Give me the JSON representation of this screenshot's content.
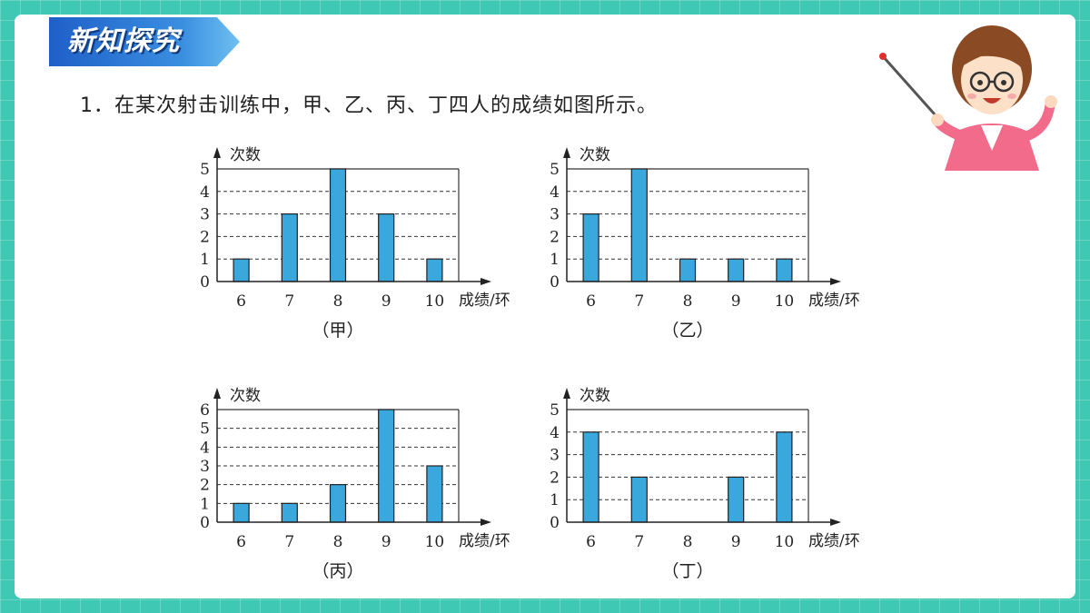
{
  "banner": {
    "title": "新知探究"
  },
  "question": {
    "text": "1．在某次射击训练中，甲、乙、丙、丁四人的成绩如图所示。"
  },
  "chart_data": [
    {
      "type": "bar",
      "caption": "（甲）",
      "ylabel": "次数",
      "xlabel": "成绩/环",
      "categories": [
        "6",
        "7",
        "8",
        "9",
        "10"
      ],
      "values": [
        1,
        3,
        5,
        3,
        1
      ],
      "ylim": [
        0,
        5
      ],
      "grid": true
    },
    {
      "type": "bar",
      "caption": "（乙）",
      "ylabel": "次数",
      "xlabel": "成绩/环",
      "categories": [
        "6",
        "7",
        "8",
        "9",
        "10"
      ],
      "values": [
        3,
        5,
        1,
        1,
        1
      ],
      "ylim": [
        0,
        5
      ],
      "grid": true
    },
    {
      "type": "bar",
      "caption": "（丙）",
      "ylabel": "次数",
      "xlabel": "成绩/环",
      "categories": [
        "6",
        "7",
        "8",
        "9",
        "10"
      ],
      "values": [
        1,
        1,
        2,
        6,
        3
      ],
      "ylim": [
        0,
        6
      ],
      "grid": true
    },
    {
      "type": "bar",
      "caption": "（丁）",
      "ylabel": "次数",
      "xlabel": "成绩/环",
      "categories": [
        "6",
        "7",
        "8",
        "9",
        "10"
      ],
      "values": [
        4,
        2,
        0,
        2,
        4
      ],
      "ylim": [
        0,
        5
      ],
      "grid": true
    }
  ],
  "colors": {
    "bar": "#3aa7dd",
    "background": "#3fc8b4",
    "banner": "#2a78d8"
  },
  "illustration": {
    "icon": "teacher-with-pointer-icon"
  }
}
